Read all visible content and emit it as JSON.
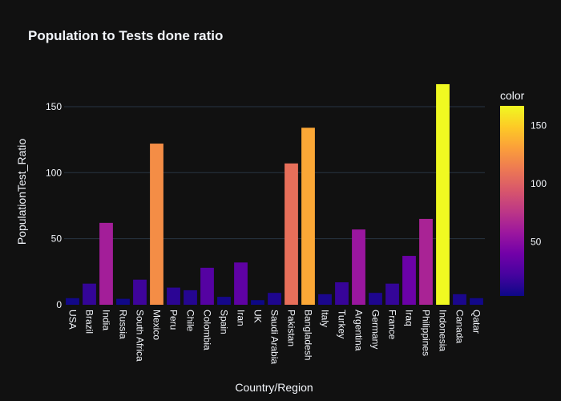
{
  "chart_data": {
    "type": "bar",
    "title": "Population to Tests done ratio",
    "xlabel": "Country/Region",
    "ylabel": "PopulationTest_Ratio",
    "ylim": [
      0,
      170
    ],
    "yticks": [
      0,
      50,
      100,
      150
    ],
    "grid": true,
    "categories": [
      "USA",
      "Brazil",
      "India",
      "Russia",
      "South Africa",
      "Mexico",
      "Peru",
      "Chile",
      "Colombia",
      "Spain",
      "Iran",
      "UK",
      "Saudi Arabia",
      "Pakistan",
      "Bangladesh",
      "Italy",
      "Turkey",
      "Argentina",
      "Germany",
      "France",
      "Iraq",
      "Philippines",
      "Indonesia",
      "Canada",
      "Qatar"
    ],
    "values": [
      5,
      16,
      62,
      4.5,
      19,
      122,
      13,
      11,
      28,
      6,
      32,
      3.5,
      9,
      107,
      134,
      8,
      17,
      57,
      9,
      16,
      37,
      65,
      167,
      8,
      5
    ],
    "colorbar": {
      "title": "color",
      "range": [
        3.5,
        167
      ],
      "ticks": [
        50,
        100,
        150
      ],
      "colorscale": [
        "#0d0887",
        "#46039f",
        "#7201a8",
        "#9c179e",
        "#bd3786",
        "#d8576b",
        "#ed7953",
        "#fb9f3a",
        "#fdca26",
        "#f0f921"
      ]
    }
  }
}
